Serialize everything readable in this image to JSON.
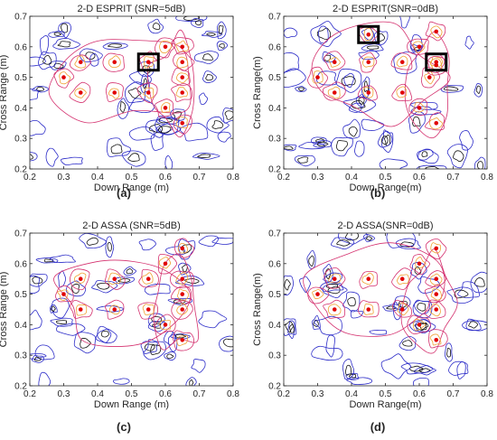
{
  "figure": {
    "colors": {
      "axis": "#262626",
      "contour_outer": "#2b2bc8",
      "contour_mid": "#d4306e",
      "contour_inner": "#f0a030",
      "contour_dark": "#111111",
      "target": "#e00000",
      "highlight_box": "#000000"
    }
  },
  "chart_data": [
    {
      "panel_label": "(a)",
      "type": "scatter",
      "title": "2-D ESPRIT (SNR=5dB)",
      "xlabel": "Down Range (m)",
      "ylabel": "Cross Range (m)",
      "xlim": [
        0.2,
        0.8
      ],
      "ylim": [
        0.2,
        0.7
      ],
      "xticks": [
        "0.2",
        "0.3",
        "0.4",
        "0.5",
        "0.6",
        "0.7",
        "0.8"
      ],
      "yticks": [
        "0.2",
        "0.3",
        "0.4",
        "0.5",
        "0.6",
        "0.7"
      ],
      "grid": false,
      "background": "contour map",
      "x": [
        0.3,
        0.35,
        0.35,
        0.45,
        0.45,
        0.55,
        0.55,
        0.6,
        0.6,
        0.65,
        0.65,
        0.65,
        0.65,
        0.65
      ],
      "y": [
        0.5,
        0.55,
        0.45,
        0.55,
        0.45,
        0.55,
        0.45,
        0.6,
        0.4,
        0.6,
        0.55,
        0.5,
        0.45,
        0.35
      ],
      "highlight_boxes": [
        [
          0.55,
          0.55
        ]
      ]
    },
    {
      "panel_label": "(b)",
      "type": "scatter",
      "title": "2-D ESPRIT(SNR=0dB)",
      "xlabel": "Down Range(m)",
      "ylabel": "Cross Range(m)",
      "xlim": [
        0.2,
        0.8
      ],
      "ylim": [
        0.2,
        0.7
      ],
      "xticks": [
        "0.2",
        "0.3",
        "0.4",
        "0.5",
        "0.6",
        "0.7",
        "0.8"
      ],
      "yticks": [
        "0.2",
        "0.3",
        "0.4",
        "0.5",
        "0.6",
        "0.7"
      ],
      "grid": false,
      "background": "contour map",
      "x": [
        0.3,
        0.35,
        0.35,
        0.45,
        0.45,
        0.45,
        0.55,
        0.55,
        0.6,
        0.6,
        0.63,
        0.65,
        0.65,
        0.65,
        0.65
      ],
      "y": [
        0.5,
        0.55,
        0.45,
        0.64,
        0.55,
        0.45,
        0.55,
        0.45,
        0.6,
        0.4,
        0.5,
        0.65,
        0.55,
        0.54,
        0.35
      ],
      "highlight_boxes": [
        [
          0.45,
          0.64
        ],
        [
          0.65,
          0.55
        ]
      ]
    },
    {
      "panel_label": "(c)",
      "type": "scatter",
      "title": "2-D ASSA (SNR=5dB)",
      "xlabel": "Down Range (m)",
      "ylabel": "Cross Range (m)",
      "xlim": [
        0.2,
        0.8
      ],
      "ylim": [
        0.2,
        0.7
      ],
      "xticks": [
        "0.2",
        "0.3",
        "0.4",
        "0.5",
        "0.6",
        "0.7",
        "0.8"
      ],
      "yticks": [
        "0.2",
        "0.3",
        "0.4",
        "0.5",
        "0.6",
        "0.7"
      ],
      "grid": false,
      "background": "contour map",
      "x": [
        0.3,
        0.35,
        0.35,
        0.45,
        0.45,
        0.55,
        0.55,
        0.6,
        0.6,
        0.65,
        0.65,
        0.65,
        0.65,
        0.65
      ],
      "y": [
        0.5,
        0.55,
        0.45,
        0.55,
        0.45,
        0.55,
        0.45,
        0.6,
        0.4,
        0.65,
        0.55,
        0.5,
        0.45,
        0.35
      ],
      "highlight_boxes": []
    },
    {
      "panel_label": "(d)",
      "type": "scatter",
      "title": "2-D ASSA(SNR=0dB)",
      "xlabel": "Down Range(m)",
      "ylabel": "Cross Range(m)",
      "xlim": [
        0.2,
        0.8
      ],
      "ylim": [
        0.2,
        0.7
      ],
      "xticks": [
        "0.2",
        "0.3",
        "0.4",
        "0.5",
        "0.6",
        "0.7",
        "0.8"
      ],
      "yticks": [
        "0.2",
        "0.3",
        "0.4",
        "0.5",
        "0.6",
        "0.7"
      ],
      "grid": false,
      "background": "contour map",
      "x": [
        0.3,
        0.35,
        0.35,
        0.45,
        0.45,
        0.55,
        0.55,
        0.6,
        0.6,
        0.65,
        0.65,
        0.65,
        0.65,
        0.65
      ],
      "y": [
        0.5,
        0.55,
        0.45,
        0.55,
        0.45,
        0.55,
        0.45,
        0.6,
        0.4,
        0.65,
        0.55,
        0.5,
        0.45,
        0.35
      ],
      "highlight_boxes": []
    }
  ]
}
